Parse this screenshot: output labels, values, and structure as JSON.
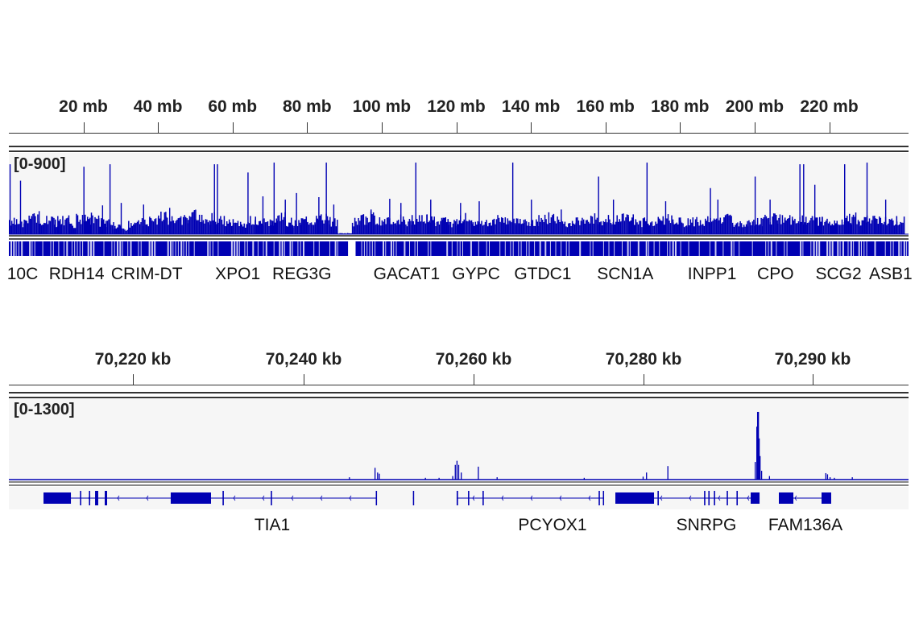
{
  "accent": "#0000b3",
  "panel_top": {
    "ruler_ticks": [
      {
        "label": "20 mb",
        "mb": 20
      },
      {
        "label": "40 mb",
        "mb": 40
      },
      {
        "label": "60 mb",
        "mb": 60
      },
      {
        "label": "80 mb",
        "mb": 80
      },
      {
        "label": "100 mb",
        "mb": 100
      },
      {
        "label": "120 mb",
        "mb": 120
      },
      {
        "label": "140 mb",
        "mb": 140
      },
      {
        "label": "160 mb",
        "mb": 160
      },
      {
        "label": "180 mb",
        "mb": 180
      },
      {
        "label": "200 mb",
        "mb": 200
      },
      {
        "label": "220 mb",
        "mb": 220
      }
    ],
    "data_range": "[0-900]",
    "genes": [
      {
        "name": "10C",
        "mb": 3.7
      },
      {
        "name": "RDH14",
        "mb": 18.2
      },
      {
        "name": "CRIM-DT",
        "mb": 37
      },
      {
        "name": "XPO1",
        "mb": 61.4
      },
      {
        "name": "REG3G",
        "mb": 78.6
      },
      {
        "name": "GACAT1",
        "mb": 106.7
      },
      {
        "name": "GYPC",
        "mb": 125.3
      },
      {
        "name": "GTDC1",
        "mb": 143.2
      },
      {
        "name": "SCN1A",
        "mb": 165.3
      },
      {
        "name": "INPP1",
        "mb": 188.6
      },
      {
        "name": "CPO",
        "mb": 205.6
      },
      {
        "name": "SCG2",
        "mb": 222.5
      },
      {
        "name": "ASB1",
        "mb": 236.5
      }
    ]
  },
  "panel_bottom": {
    "ruler_ticks": [
      {
        "label": "70,220 kb"
      },
      {
        "label": "70,240 kb"
      },
      {
        "label": "70,260 kb"
      },
      {
        "label": "70,280 kb"
      },
      {
        "label": "70,290 kb"
      }
    ],
    "data_range": "[0-1300]",
    "genes": [
      {
        "name": "TIA1",
        "start": 70209.53,
        "end": 70248.58,
        "exons": [
          [
            70209.53,
            70212.74
          ],
          [
            70213.8,
            70213.95
          ],
          [
            70214.85,
            70215.0
          ],
          [
            70215.57,
            70215.94
          ],
          [
            70216.7,
            70216.98
          ],
          [
            70224.43,
            70229.15
          ],
          [
            70230.5,
            70230.65
          ],
          [
            70236.15,
            70236.3
          ],
          [
            70248.45,
            70248.58
          ]
        ]
      },
      {
        "name": "",
        "start": 70252.8,
        "end": 70252.9,
        "exons": [
          [
            70252.8,
            70252.9
          ]
        ]
      },
      {
        "name": "PCYOX1",
        "start": 70257.92,
        "end": 70275.19,
        "exons": [
          [
            70257.92,
            70258.08
          ],
          [
            70259.25,
            70259.4
          ],
          [
            70260.95,
            70261.1
          ],
          [
            70274.55,
            70274.7
          ],
          [
            70275.05,
            70275.19
          ]
        ]
      },
      {
        "name": "SNRPG",
        "start": 70276.51,
        "end": 70293.4,
        "exons": [
          [
            70276.51,
            70281.04
          ],
          [
            70281.45,
            70281.6
          ],
          [
            70286.9,
            70287.05
          ],
          [
            70287.4,
            70287.55
          ],
          [
            70288.05,
            70288.2
          ],
          [
            70289.55,
            70289.7
          ],
          [
            70290.7,
            70290.85
          ],
          [
            70292.36,
            70293.4
          ]
        ]
      },
      {
        "name": "FAM136A",
        "start": 70295.66,
        "end": 70301.79,
        "exons": [
          [
            70295.66,
            70297.36
          ],
          [
            70300.66,
            70301.79
          ]
        ]
      }
    ]
  },
  "chart_data": [
    {
      "type": "bar",
      "title": "",
      "xlabel": "",
      "ylabel": "",
      "x_unit": "mb",
      "xlim": [
        0,
        240
      ],
      "ylim": [
        0,
        900
      ],
      "background_bin_mb": 2,
      "background": [
        150,
        120,
        180,
        200,
        130,
        160,
        140,
        170,
        120,
        190,
        180,
        200,
        150,
        130,
        90,
        60,
        120,
        140,
        160,
        150,
        200,
        170,
        150,
        180,
        220,
        190,
        170,
        200,
        160,
        140,
        150,
        130,
        180,
        160,
        140,
        170,
        200,
        150,
        130,
        160,
        170,
        190,
        180,
        150,
        10,
        10,
        150,
        180,
        200,
        170,
        160,
        150,
        190,
        140,
        170,
        180,
        200,
        160,
        150,
        130,
        170,
        190,
        150,
        160,
        140,
        180,
        170,
        160,
        150,
        140,
        150,
        170,
        190,
        160,
        140,
        130,
        150,
        180,
        200,
        160,
        170,
        190,
        200,
        180,
        140,
        150,
        130,
        160,
        180,
        150,
        120,
        150,
        170,
        160,
        150,
        180,
        190,
        140,
        130,
        150,
        160,
        170,
        190,
        200,
        180,
        150,
        170,
        190,
        160,
        150,
        140,
        170,
        180,
        190,
        150,
        170,
        160,
        180,
        160,
        170
      ],
      "peaks": [
        [
          0.2,
          850
        ],
        [
          3,
          650
        ],
        [
          8,
          280
        ],
        [
          13,
          220
        ],
        [
          20,
          820
        ],
        [
          25,
          350
        ],
        [
          27,
          850
        ],
        [
          30,
          380
        ],
        [
          36,
          360
        ],
        [
          43,
          320
        ],
        [
          55,
          850
        ],
        [
          55.8,
          850
        ],
        [
          64,
          750
        ],
        [
          68,
          460
        ],
        [
          71,
          870
        ],
        [
          74,
          420
        ],
        [
          77,
          500
        ],
        [
          85,
          870
        ],
        [
          83,
          450
        ],
        [
          87,
          360
        ],
        [
          97,
          300
        ],
        [
          102,
          430
        ],
        [
          105,
          380
        ],
        [
          109,
          870
        ],
        [
          113,
          420
        ],
        [
          121,
          380
        ],
        [
          126,
          400
        ],
        [
          135,
          870
        ],
        [
          140,
          420
        ],
        [
          148,
          300
        ],
        [
          158,
          700
        ],
        [
          162,
          420
        ],
        [
          171,
          870
        ],
        [
          176,
          400
        ],
        [
          188,
          560
        ],
        [
          190,
          420
        ],
        [
          200,
          700
        ],
        [
          204,
          420
        ],
        [
          212,
          850
        ],
        [
          213,
          850
        ],
        [
          216,
          600
        ],
        [
          224,
          850
        ],
        [
          230,
          870
        ],
        [
          235,
          420
        ]
      ]
    },
    {
      "type": "bar",
      "title": "",
      "xlabel": "",
      "ylabel": "",
      "x_unit": "kb",
      "xlim": [
        70205.6,
        70310.9
      ],
      "ylim": [
        0,
        1300
      ],
      "points": [
        [
          70245.3,
          40
        ],
        [
          70248.3,
          200
        ],
        [
          70248.6,
          120
        ],
        [
          70248.8,
          100
        ],
        [
          70254.2,
          30
        ],
        [
          70255.8,
          30
        ],
        [
          70257.4,
          60
        ],
        [
          70257.7,
          250
        ],
        [
          70257.9,
          320
        ],
        [
          70258.1,
          250
        ],
        [
          70258.4,
          120
        ],
        [
          70260.4,
          220
        ],
        [
          70262.6,
          40
        ],
        [
          70272.8,
          30
        ],
        [
          70279.7,
          50
        ],
        [
          70280.1,
          120
        ],
        [
          70282.6,
          230
        ],
        [
          70292.83,
          300
        ],
        [
          70293.02,
          900
        ],
        [
          70293.11,
          1150
        ],
        [
          70293.21,
          1150
        ],
        [
          70293.3,
          700
        ],
        [
          70293.4,
          400
        ],
        [
          70293.58,
          150
        ],
        [
          70294.5,
          60
        ],
        [
          70301.1,
          110
        ],
        [
          70301.3,
          90
        ],
        [
          70301.6,
          40
        ],
        [
          70302.1,
          30
        ],
        [
          70304.2,
          40
        ]
      ]
    }
  ]
}
